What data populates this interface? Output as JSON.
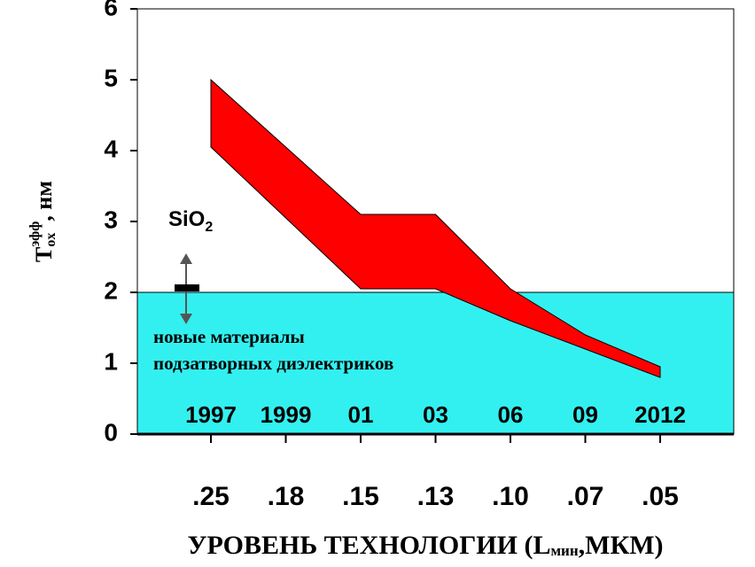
{
  "chart_data": {
    "type": "band",
    "categories": [
      ".25",
      ".18",
      ".15",
      ".13",
      ".10",
      ".07",
      ".05"
    ],
    "years": [
      "1997",
      "1999",
      "01",
      "03",
      "06",
      "09",
      "2012"
    ],
    "upper": [
      5.0,
      4.05,
      3.1,
      3.1,
      2.05,
      1.4,
      0.95
    ],
    "lower": [
      4.05,
      3.05,
      2.05,
      2.05,
      1.6,
      1.2,
      0.8
    ],
    "color": "#ff0000",
    "fill_below": 2,
    "fill_color": "#33f0f0",
    "ylim": [
      0,
      6
    ],
    "yticks": [
      0,
      1,
      2,
      3,
      4,
      5,
      6
    ],
    "ylabel": {
      "main": "T",
      "sub": "ox",
      "sup": "эфф",
      "unit": ", нм"
    },
    "xlabel": {
      "main": "УРОВЕНЬ ТЕХНОЛОГИИ (L",
      "sub": "мин",
      "unit": ",МКМ)"
    },
    "annotations": {
      "sio2": "SiO",
      "sio2_sub": "2",
      "line1": "новые материалы",
      "line2": "подзатворных диэлектриков"
    }
  }
}
